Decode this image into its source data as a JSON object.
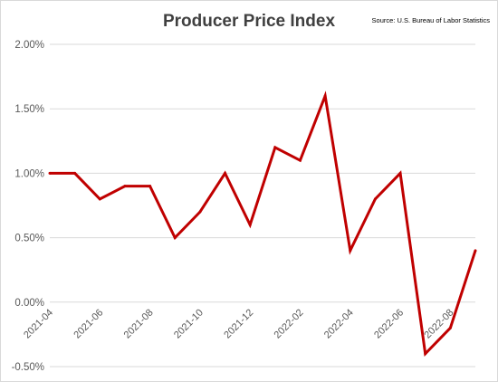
{
  "chart_data": {
    "type": "line",
    "title": "Producer Price Index",
    "source": "Source: U.S. Bureau of Labor Statistics",
    "xlabel": "",
    "ylabel": "",
    "x": [
      "2021-04",
      "2021-05",
      "2021-06",
      "2021-07",
      "2021-08",
      "2021-09",
      "2021-10",
      "2021-11",
      "2021-12",
      "2022-01",
      "2022-02",
      "2022-03",
      "2022-04",
      "2022-05",
      "2022-06",
      "2022-07",
      "2022-08",
      "2022-09"
    ],
    "x_tick_labels": [
      "2021-04",
      "2021-06",
      "2021-08",
      "2021-10",
      "2021-12",
      "2022-02",
      "2022-04",
      "2022-06",
      "2022-08"
    ],
    "series": [
      {
        "values": [
          1.0,
          1.0,
          0.8,
          0.9,
          0.9,
          0.5,
          0.7,
          1.0,
          0.6,
          1.2,
          1.1,
          1.6,
          0.4,
          0.8,
          1.0,
          -0.4,
          -0.2,
          0.4
        ]
      }
    ],
    "ylim": [
      -0.5,
      2.0
    ],
    "yticks": [
      -0.5,
      0.0,
      0.5,
      1.0,
      1.5,
      2.0
    ],
    "ytick_labels": [
      "-0.50%",
      "0.00%",
      "0.50%",
      "1.00%",
      "1.50%",
      "2.00%"
    ],
    "grid": true,
    "legend": "none",
    "colors": {
      "line": "#c00000",
      "grid": "#d9d9d9",
      "text": "#595959",
      "title": "#404040"
    }
  }
}
